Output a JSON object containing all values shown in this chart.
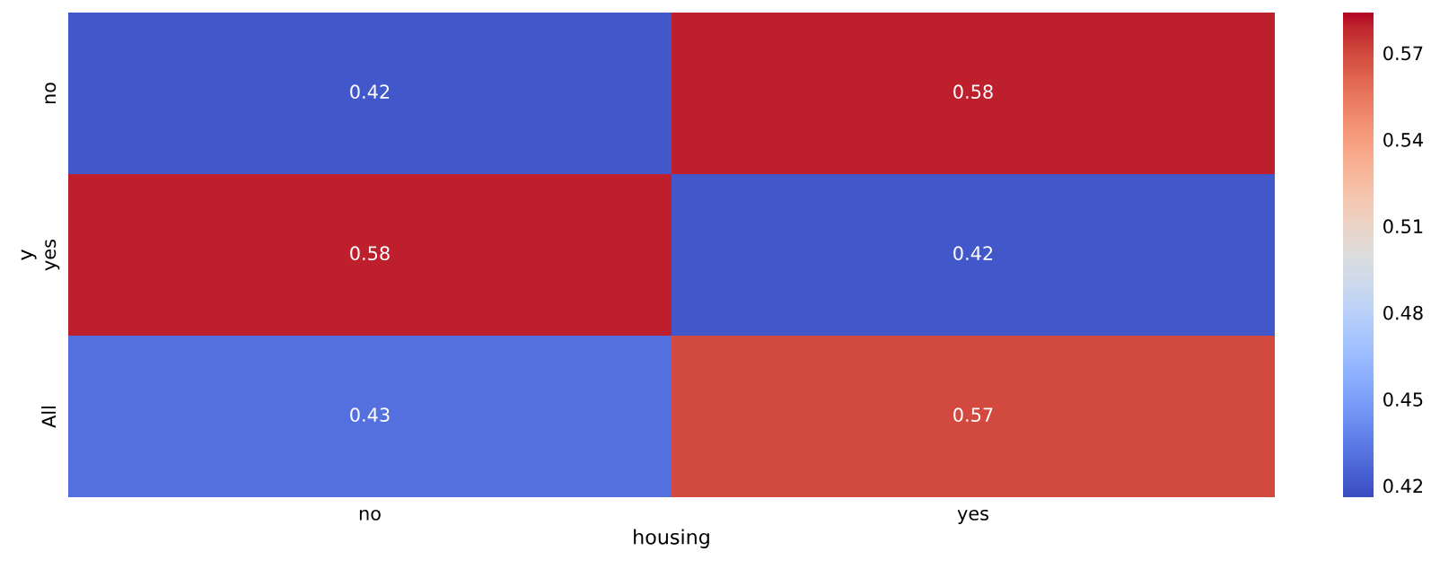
{
  "chart_data": {
    "type": "heatmap",
    "xlabel": "housing",
    "ylabel": "y",
    "categories": [
      "no",
      "yes"
    ],
    "y_categories": [
      "no",
      "yes",
      "All"
    ],
    "cells": [
      [
        0.42,
        0.58
      ],
      [
        0.58,
        0.42
      ],
      [
        0.43,
        0.57
      ]
    ],
    "data_labels": true,
    "clim": [
      0.416,
      0.584
    ],
    "cticks": [
      0.42,
      0.45,
      0.48,
      0.51,
      0.54,
      0.57
    ]
  }
}
